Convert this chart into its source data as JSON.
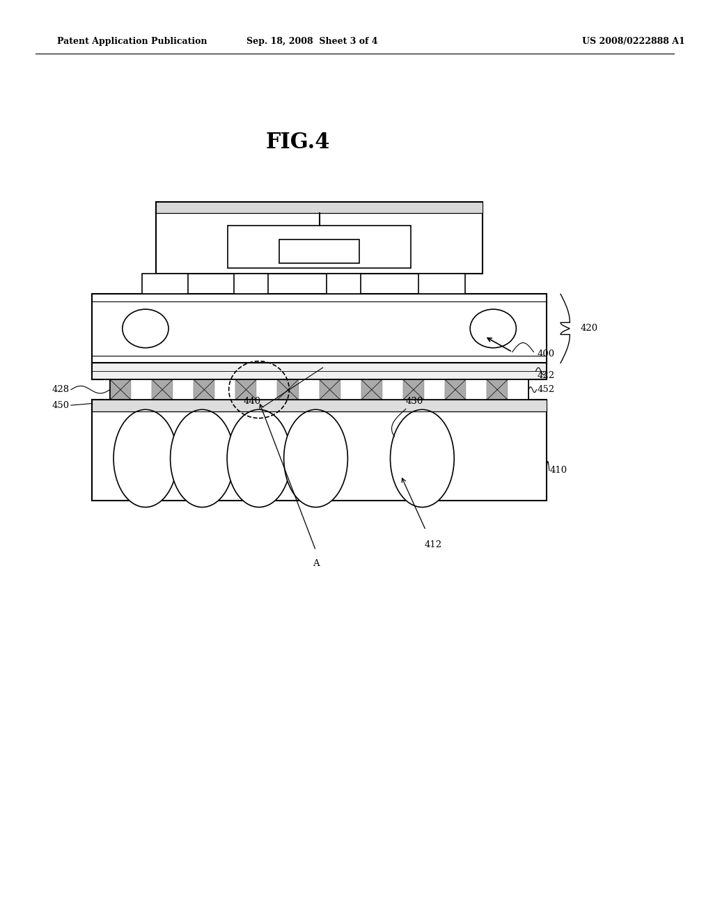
{
  "background_color": "#ffffff",
  "header_left": "Patent Application Publication",
  "header_mid": "Sep. 18, 2008  Sheet 3 of 4",
  "header_right": "US 2008/0222888 A1",
  "fig_label": "FIG.4"
}
